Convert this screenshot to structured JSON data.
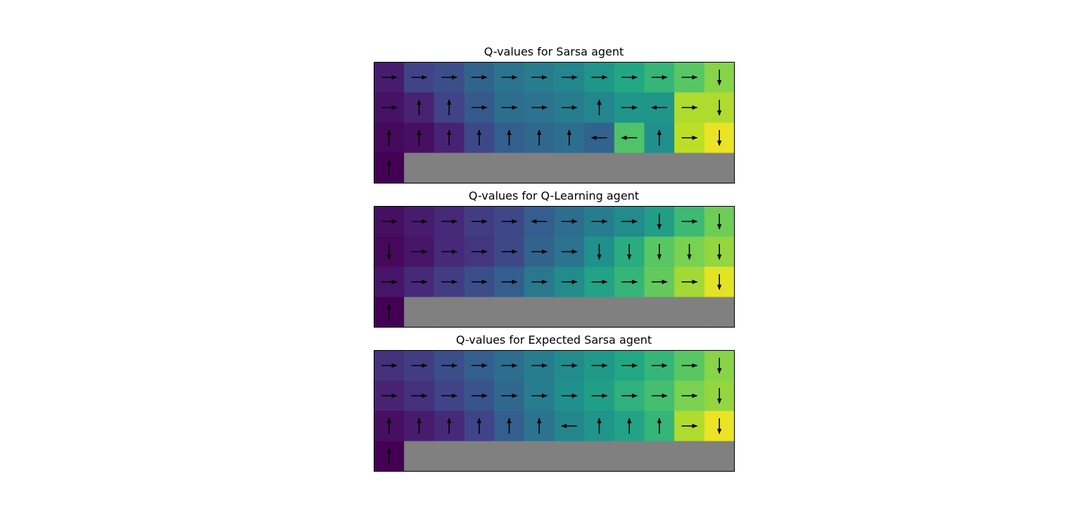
{
  "chart_data": [
    {
      "type": "heatmap",
      "title": "Q-values for Sarsa agent",
      "rows": 4,
      "cols": 12,
      "colormap": "viridis",
      "cliff_color": "#808080",
      "values": [
        [
          0.08,
          0.2,
          0.24,
          0.32,
          0.38,
          0.42,
          0.46,
          0.52,
          0.6,
          0.66,
          0.74,
          0.82
        ],
        [
          0.05,
          0.1,
          0.2,
          0.28,
          0.36,
          0.38,
          0.42,
          0.46,
          0.52,
          0.52,
          0.88,
          0.88
        ],
        [
          0.02,
          0.04,
          0.1,
          0.22,
          0.3,
          0.34,
          0.36,
          0.32,
          0.72,
          0.5,
          0.9,
          0.97
        ],
        [
          0.0,
          null,
          null,
          null,
          null,
          null,
          null,
          null,
          null,
          null,
          null,
          null
        ]
      ],
      "policy": [
        [
          "right",
          "right",
          "right",
          "right",
          "right",
          "right",
          "right",
          "right",
          "right",
          "right",
          "right",
          "down"
        ],
        [
          "right",
          "up",
          "up",
          "right",
          "right",
          "right",
          "right",
          "up",
          "right",
          "left",
          "right",
          "down"
        ],
        [
          "up",
          "up",
          "up",
          "up",
          "up",
          "up",
          "up",
          "left",
          "left",
          "up",
          "right",
          "down"
        ],
        [
          "up",
          null,
          null,
          null,
          null,
          null,
          null,
          null,
          null,
          null,
          null,
          null
        ]
      ]
    },
    {
      "type": "heatmap",
      "title": "Q-values for Q-Learning agent",
      "rows": 4,
      "cols": 12,
      "colormap": "viridis",
      "cliff_color": "#808080",
      "values": [
        [
          0.04,
          0.08,
          0.12,
          0.18,
          0.22,
          0.3,
          0.36,
          0.42,
          0.48,
          0.56,
          0.68,
          0.78
        ],
        [
          0.02,
          0.06,
          0.12,
          0.16,
          0.22,
          0.32,
          0.38,
          0.5,
          0.62,
          0.74,
          0.8,
          0.84
        ],
        [
          0.06,
          0.12,
          0.18,
          0.24,
          0.3,
          0.4,
          0.48,
          0.58,
          0.66,
          0.76,
          0.86,
          0.96
        ],
        [
          0.0,
          null,
          null,
          null,
          null,
          null,
          null,
          null,
          null,
          null,
          null,
          null
        ]
      ],
      "policy": [
        [
          "right",
          "right",
          "right",
          "right",
          "right",
          "left",
          "right",
          "right",
          "right",
          "down",
          "right",
          "down"
        ],
        [
          "down",
          "right",
          "right",
          "right",
          "right",
          "right",
          "right",
          "down",
          "down",
          "down",
          "down",
          "down"
        ],
        [
          "right",
          "right",
          "right",
          "right",
          "right",
          "right",
          "right",
          "right",
          "right",
          "right",
          "right",
          "down"
        ],
        [
          "up",
          null,
          null,
          null,
          null,
          null,
          null,
          null,
          null,
          null,
          null,
          null
        ]
      ]
    },
    {
      "type": "heatmap",
      "title": "Q-values for Expected Sarsa agent",
      "rows": 4,
      "cols": 12,
      "colormap": "viridis",
      "cliff_color": "#808080",
      "values": [
        [
          0.14,
          0.18,
          0.24,
          0.3,
          0.36,
          0.42,
          0.48,
          0.54,
          0.6,
          0.66,
          0.74,
          0.82
        ],
        [
          0.1,
          0.14,
          0.2,
          0.26,
          0.34,
          0.42,
          0.5,
          0.56,
          0.64,
          0.7,
          0.8,
          0.84
        ],
        [
          0.04,
          0.08,
          0.12,
          0.2,
          0.3,
          0.38,
          0.46,
          0.52,
          0.58,
          0.66,
          0.88,
          0.97
        ],
        [
          0.0,
          null,
          null,
          null,
          null,
          null,
          null,
          null,
          null,
          null,
          null,
          null
        ]
      ],
      "policy": [
        [
          "right",
          "right",
          "right",
          "right",
          "right",
          "right",
          "right",
          "right",
          "right",
          "right",
          "right",
          "down"
        ],
        [
          "right",
          "right",
          "right",
          "right",
          "right",
          "right",
          "right",
          "right",
          "right",
          "right",
          "right",
          "down"
        ],
        [
          "up",
          "up",
          "up",
          "up",
          "up",
          "up",
          "left",
          "up",
          "up",
          "up",
          "right",
          "down"
        ],
        [
          "up",
          null,
          null,
          null,
          null,
          null,
          null,
          null,
          null,
          null,
          null,
          null
        ]
      ]
    }
  ]
}
